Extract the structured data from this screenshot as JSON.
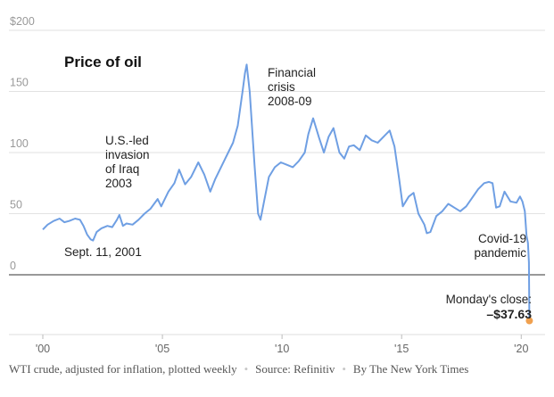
{
  "chart_data": {
    "type": "line",
    "title": "Price of oil",
    "y_ticks": [
      "$200",
      "150",
      "100",
      "50",
      "0"
    ],
    "y_tick_values": [
      200,
      150,
      100,
      50,
      0
    ],
    "x_ticks": [
      "'00",
      "'05",
      "'10",
      "'15",
      "'20"
    ],
    "x_tick_values": [
      2000,
      2005,
      2010,
      2015,
      2020
    ],
    "xlim": [
      2000,
      2020.4
    ],
    "ylim": [
      -45,
      205
    ],
    "grid": "horizontal",
    "series": [
      {
        "color": "#6f9fe3",
        "points": [
          [
            2000.0,
            37
          ],
          [
            2000.2,
            41
          ],
          [
            2000.45,
            44
          ],
          [
            2000.7,
            46
          ],
          [
            2000.9,
            43
          ],
          [
            2001.1,
            44
          ],
          [
            2001.35,
            46
          ],
          [
            2001.55,
            45
          ],
          [
            2001.7,
            40
          ],
          [
            2001.85,
            33
          ],
          [
            2002.0,
            29
          ],
          [
            2002.1,
            28
          ],
          [
            2002.25,
            35
          ],
          [
            2002.45,
            38
          ],
          [
            2002.7,
            40
          ],
          [
            2002.9,
            39
          ],
          [
            2003.1,
            45
          ],
          [
            2003.2,
            49
          ],
          [
            2003.35,
            40
          ],
          [
            2003.5,
            42
          ],
          [
            2003.75,
            41
          ],
          [
            2004.0,
            45
          ],
          [
            2004.25,
            50
          ],
          [
            2004.5,
            54
          ],
          [
            2004.8,
            62
          ],
          [
            2004.95,
            56
          ],
          [
            2005.25,
            68
          ],
          [
            2005.5,
            75
          ],
          [
            2005.7,
            86
          ],
          [
            2005.95,
            74
          ],
          [
            2006.2,
            80
          ],
          [
            2006.5,
            92
          ],
          [
            2006.75,
            82
          ],
          [
            2007.0,
            68
          ],
          [
            2007.2,
            78
          ],
          [
            2007.5,
            90
          ],
          [
            2007.75,
            100
          ],
          [
            2007.95,
            108
          ],
          [
            2008.15,
            122
          ],
          [
            2008.35,
            150
          ],
          [
            2008.45,
            165
          ],
          [
            2008.52,
            172
          ],
          [
            2008.65,
            150
          ],
          [
            2008.85,
            90
          ],
          [
            2009.0,
            50
          ],
          [
            2009.1,
            45
          ],
          [
            2009.25,
            60
          ],
          [
            2009.45,
            80
          ],
          [
            2009.7,
            88
          ],
          [
            2009.95,
            92
          ],
          [
            2010.2,
            90
          ],
          [
            2010.45,
            88
          ],
          [
            2010.7,
            93
          ],
          [
            2010.95,
            100
          ],
          [
            2011.1,
            115
          ],
          [
            2011.3,
            128
          ],
          [
            2011.55,
            112
          ],
          [
            2011.75,
            100
          ],
          [
            2011.95,
            113
          ],
          [
            2012.15,
            120
          ],
          [
            2012.4,
            100
          ],
          [
            2012.6,
            95
          ],
          [
            2012.8,
            105
          ],
          [
            2013.0,
            106
          ],
          [
            2013.25,
            102
          ],
          [
            2013.5,
            114
          ],
          [
            2013.75,
            110
          ],
          [
            2014.0,
            108
          ],
          [
            2014.3,
            114
          ],
          [
            2014.5,
            118
          ],
          [
            2014.7,
            105
          ],
          [
            2014.9,
            78
          ],
          [
            2015.05,
            56
          ],
          [
            2015.3,
            64
          ],
          [
            2015.5,
            67
          ],
          [
            2015.7,
            50
          ],
          [
            2015.95,
            41
          ],
          [
            2016.05,
            34
          ],
          [
            2016.2,
            35
          ],
          [
            2016.45,
            48
          ],
          [
            2016.7,
            52
          ],
          [
            2016.95,
            58
          ],
          [
            2017.2,
            55
          ],
          [
            2017.45,
            52
          ],
          [
            2017.7,
            56
          ],
          [
            2017.95,
            63
          ],
          [
            2018.2,
            70
          ],
          [
            2018.45,
            75
          ],
          [
            2018.65,
            76
          ],
          [
            2018.8,
            75
          ],
          [
            2018.95,
            55
          ],
          [
            2019.1,
            56
          ],
          [
            2019.3,
            68
          ],
          [
            2019.55,
            60
          ],
          [
            2019.8,
            59
          ],
          [
            2019.95,
            64
          ],
          [
            2020.05,
            60
          ],
          [
            2020.15,
            52
          ],
          [
            2020.22,
            32
          ],
          [
            2020.28,
            26
          ],
          [
            2020.32,
            10
          ],
          [
            2020.34,
            -37.63
          ]
        ]
      }
    ],
    "endpoint": {
      "x": 2020.34,
      "y": -37.63,
      "color": "#f0a04e"
    },
    "annotations": {
      "iraq": [
        "U.S.-led",
        "invasion",
        "of Iraq",
        "2003"
      ],
      "sept11": "Sept. 11, 2001",
      "crisis": [
        "Financial",
        "crisis",
        "2008-09"
      ],
      "covid": [
        "Covid-19",
        "pandemic"
      ],
      "close_label": "Monday's close:",
      "close_value": "–$37.63"
    }
  },
  "footer": {
    "description": "WTI crude, adjusted for inflation, plotted weekly",
    "source": "Source: Refinitiv",
    "byline": "By The New York Times",
    "separator": "•"
  }
}
